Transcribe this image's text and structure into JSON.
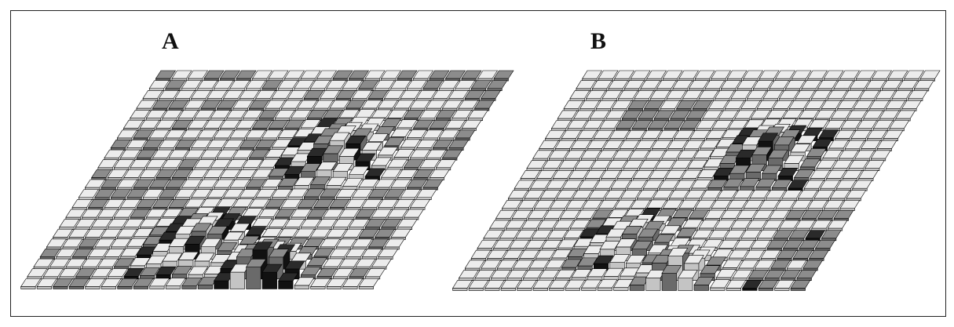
{
  "figure": {
    "panels": [
      {
        "id": "A",
        "label": "A"
      },
      {
        "id": "B",
        "label": "B"
      }
    ],
    "colors": {
      "light_top": "#ececec",
      "light_front": "#c4c4c4",
      "mid_top": "#8c8c8c",
      "mid_front": "#6a6a6a",
      "dark_top": "#2a2a2a",
      "dark_front": "#111111",
      "side": "#555555",
      "edge": "#000000"
    }
  }
}
